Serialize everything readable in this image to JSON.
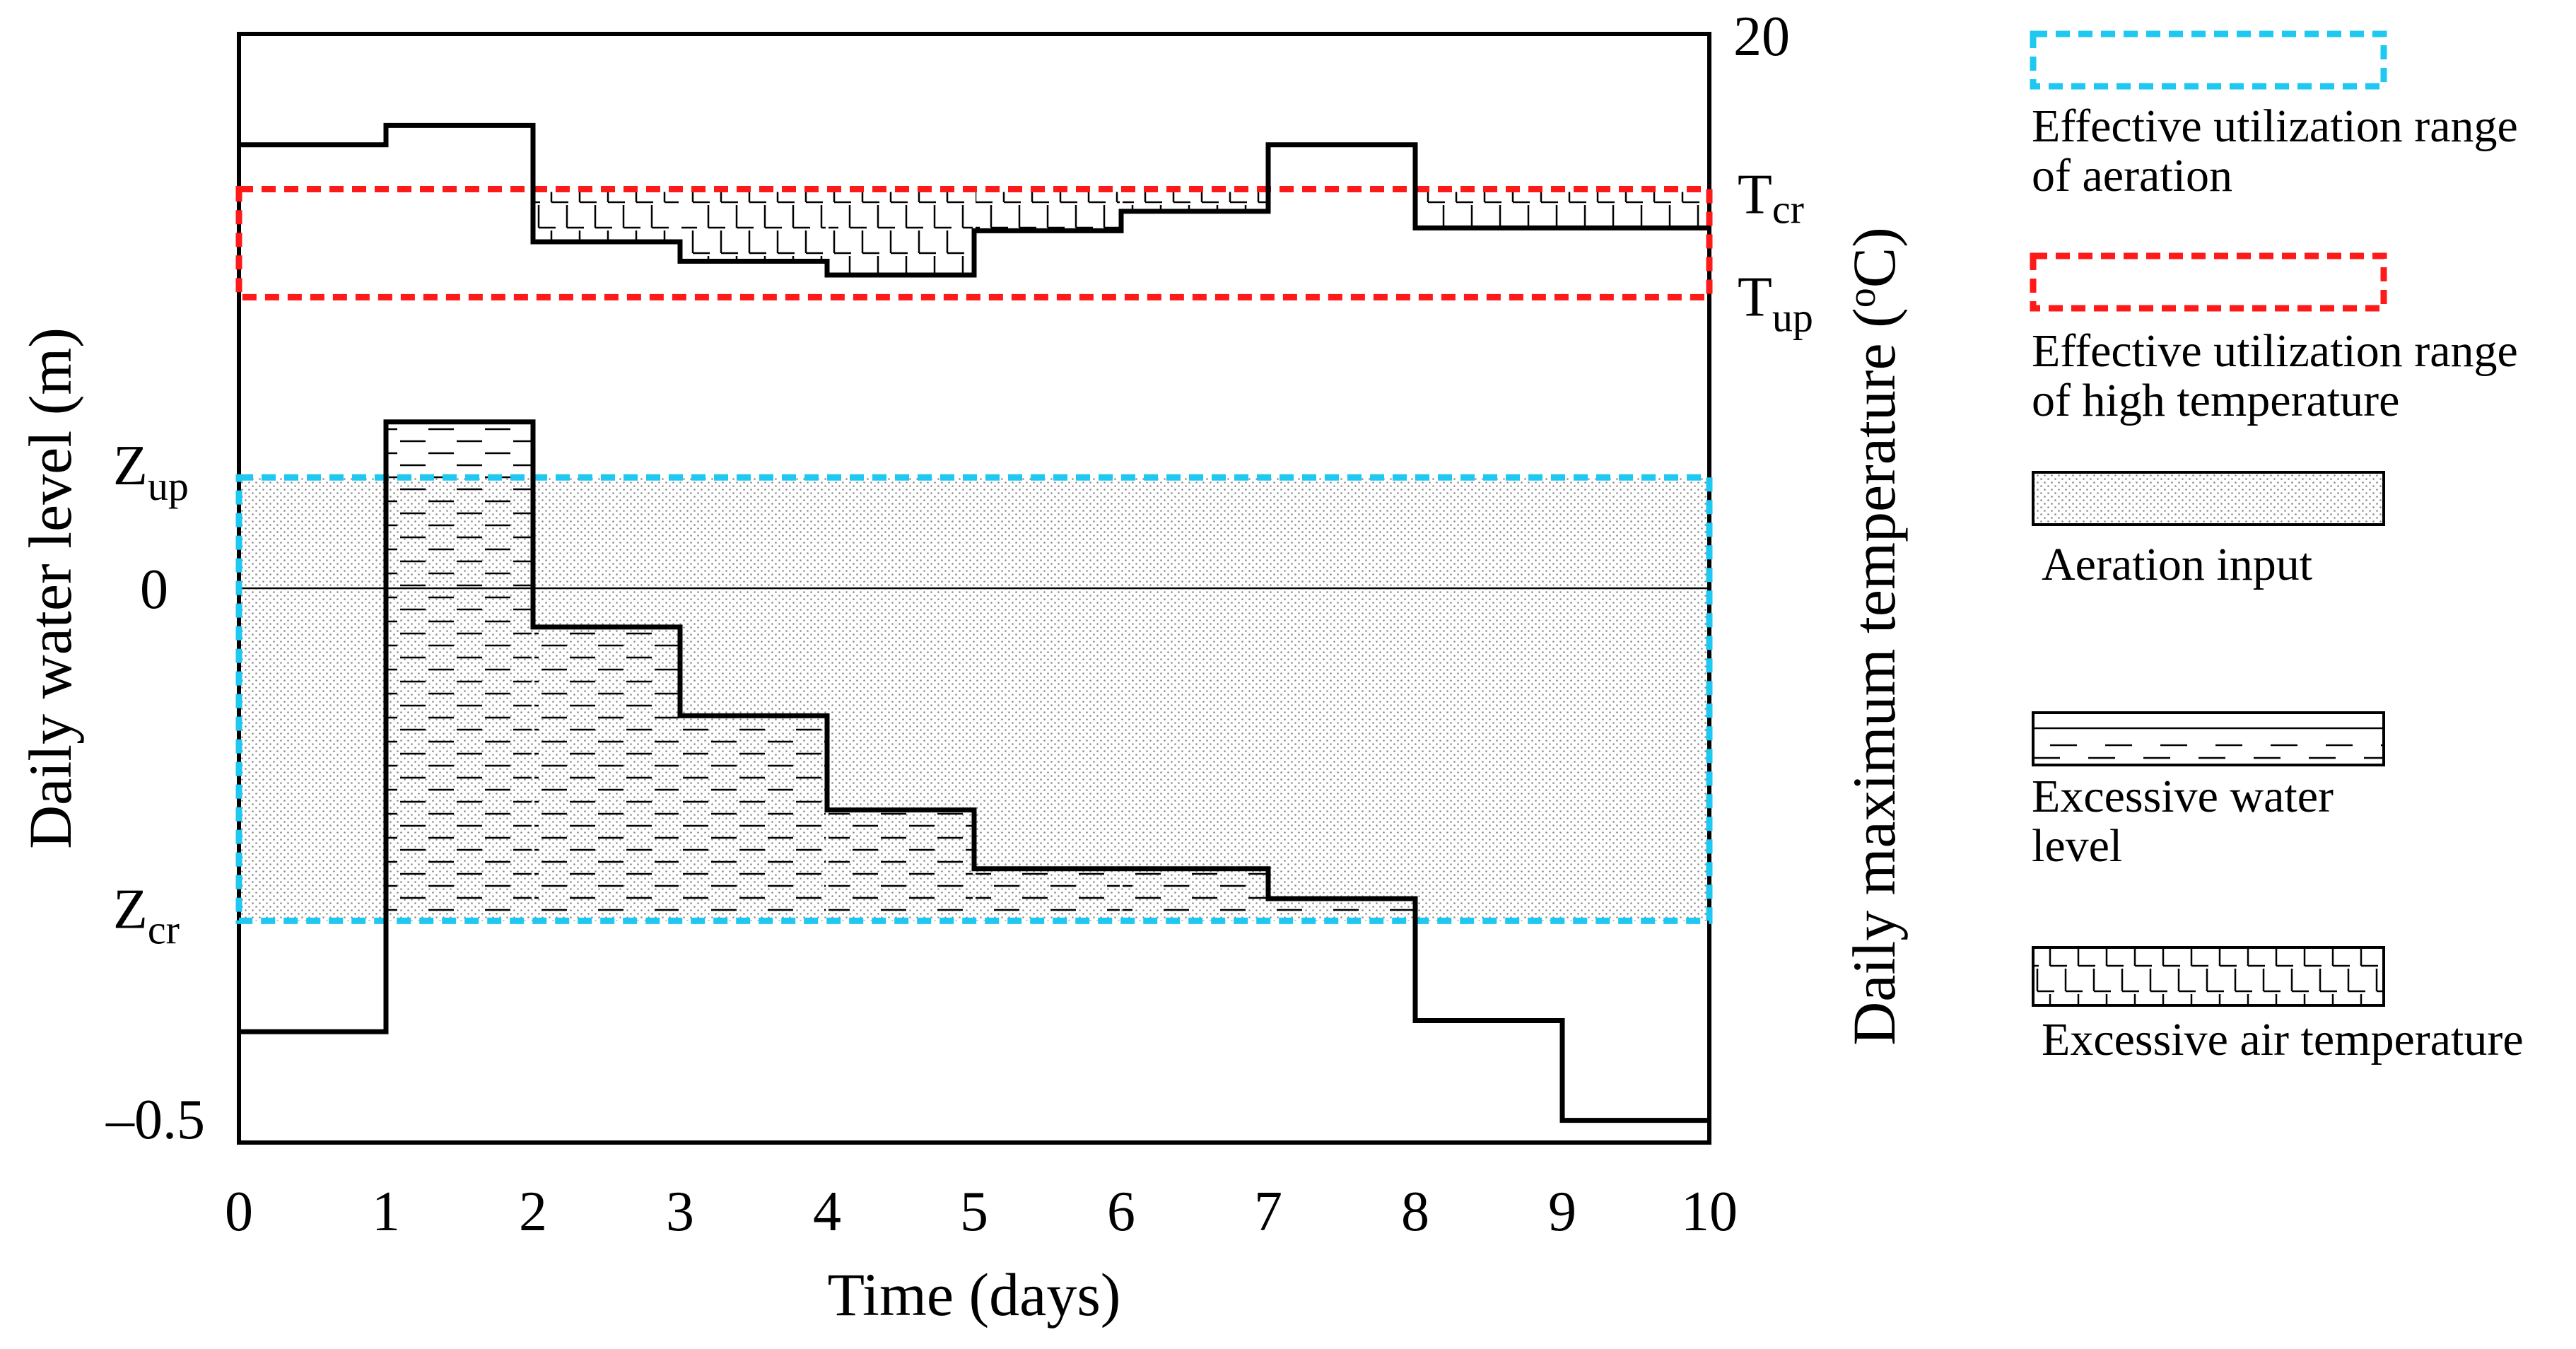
{
  "chart_data": {
    "type": "step",
    "xlabel": "Time (days)",
    "ylabel_left": "Daily water level (m)",
    "ylabel_right": "Daily maximum temperature (",
    "ylabel_right_degree": "o",
    "ylabel_right_unit": "C)",
    "x_ticks": [
      "0",
      "1",
      "2",
      "3",
      "4",
      "5",
      "6",
      "7",
      "8",
      "9",
      "10"
    ],
    "xlim": [
      0,
      10
    ],
    "left_ticks": {
      "Z": "Z",
      "up": "up",
      "zero": "0",
      "cr": "cr",
      "minus": "–0.5"
    },
    "right_ticks": {
      "top": "20",
      "T": "T",
      "cr": "cr",
      "up": "up"
    },
    "water_level": {
      "name": "Daily water level",
      "ylim": [
        -0.5,
        0.5
      ],
      "days": [
        0,
        1,
        2,
        3,
        4,
        5,
        6,
        7,
        8,
        9,
        10
      ],
      "values": [
        -0.4,
        0.15,
        -0.035,
        -0.115,
        -0.2,
        -0.253,
        -0.253,
        -0.28,
        -0.39,
        -0.48,
        -0.48
      ],
      "Z_up": 0.1,
      "Z_cr": -0.3,
      "zero": 0
    },
    "temperature": {
      "name": "Daily maximum temperature",
      "ylim": [
        0,
        20
      ],
      "days": [
        0,
        1,
        2,
        3,
        4,
        5,
        6,
        7,
        8,
        9,
        10
      ],
      "values": [
        18.0,
        18.35,
        16.25,
        15.9,
        15.65,
        16.45,
        16.8,
        18.0,
        16.5,
        16.5,
        16.5
      ],
      "T_cr": 17.2,
      "T_up": 15.25
    },
    "legend": [
      {
        "key": "aeration_range",
        "line1": "Effective utilization range",
        "line2": "of aeration"
      },
      {
        "key": "temp_range",
        "line1": "Effective utilization range",
        "line2": "of high temperature"
      },
      {
        "key": "aeration_input",
        "line1": "Aeration input",
        "line2": ""
      },
      {
        "key": "excess_water",
        "line1": "Excessive water",
        "line2": "level"
      },
      {
        "key": "excess_temp",
        "line1": "Excessive air temperature",
        "line2": ""
      }
    ],
    "colors": {
      "aeration_range": "#1ec8f0",
      "temp_range": "#ff1a1a",
      "line": "#000000"
    }
  }
}
